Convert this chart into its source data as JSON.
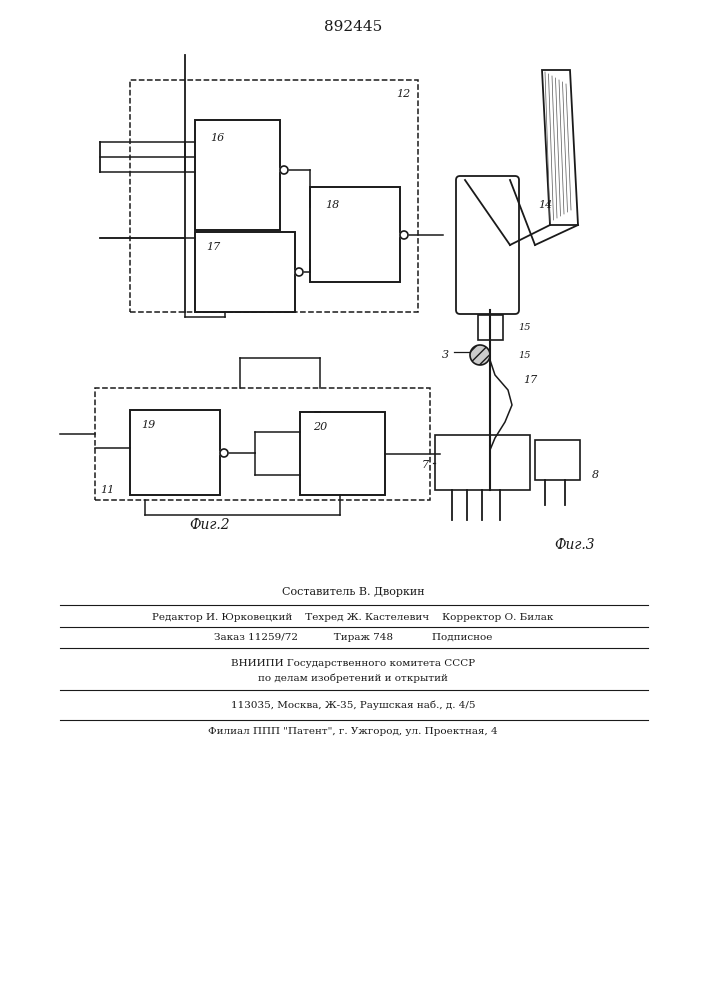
{
  "patent_number": "892445",
  "fig2_label": "Фиг.2",
  "fig3_label": "Фиг.3",
  "footer_lines": [
    "Составитель В. Дворкин",
    "Редактор И. Юрковецкий    Техред Ж. Кастелевич    Корректор О. Билак",
    "Заказ 11259/72           Тираж 748            Подписное",
    "ВНИИПИ Государственного комитета СССР",
    "по делам изобретений и открытий",
    "113035, Москва, Ж-35, Раушская наб., д. 4/5",
    "Филиал ППП \"Патент\", г. Ужгород, ул. Проектная, 4"
  ],
  "bg_color": "#ffffff",
  "line_color": "#1a1a1a"
}
